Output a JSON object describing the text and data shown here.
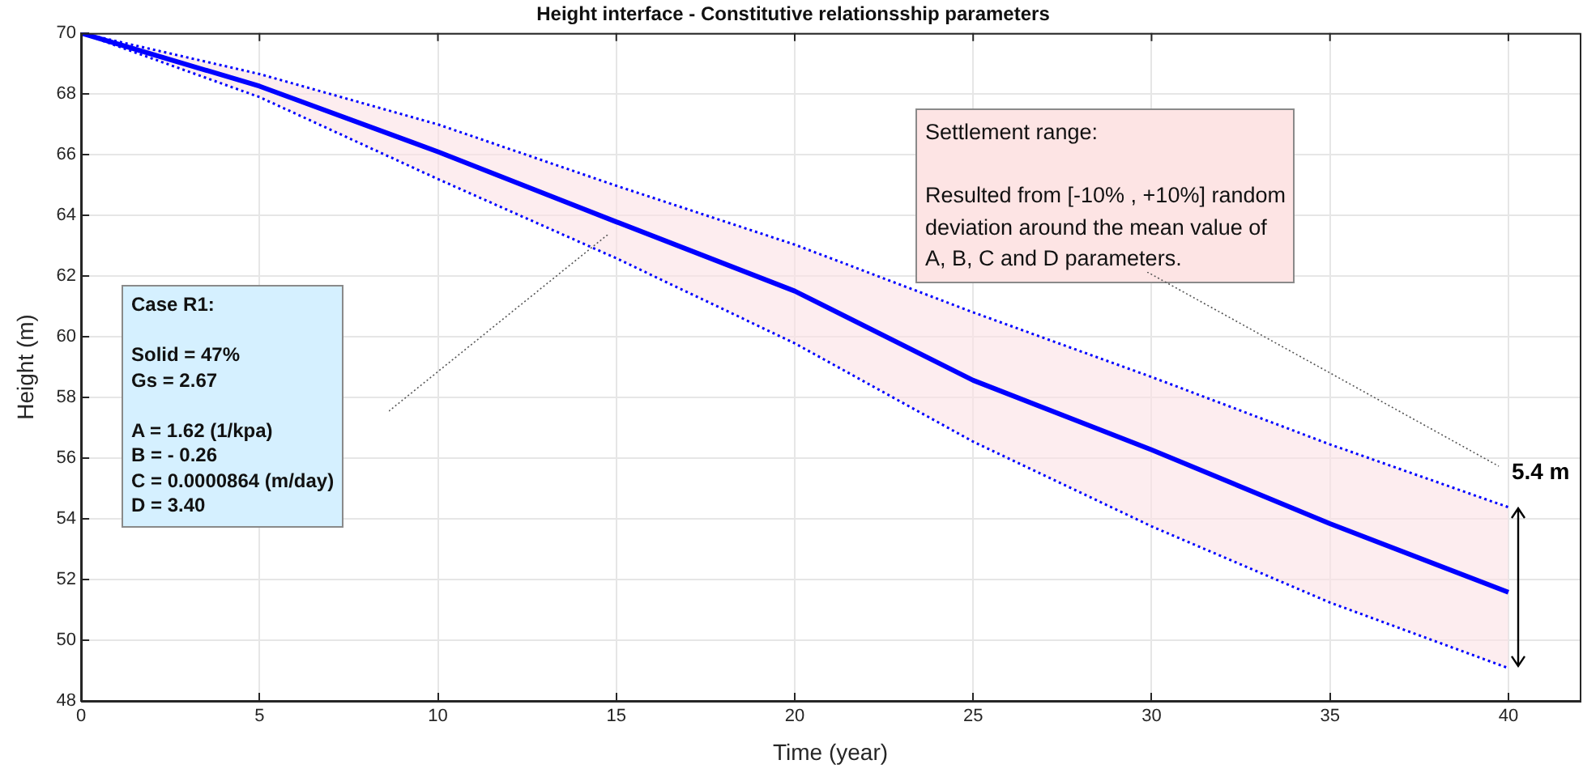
{
  "chart_data": {
    "type": "line",
    "title": "Height interface - Constitutive relationsship parameters",
    "xlabel": "Time (year)",
    "ylabel": "Height (m)",
    "x": [
      0,
      5,
      10,
      15,
      20,
      25,
      30,
      35,
      40
    ],
    "series": [
      {
        "color": "#0000ff",
        "line_style": "solid",
        "values": [
          70,
          68.25,
          66.09,
          63.78,
          61.5,
          58.56,
          56.27,
          53.84,
          51.58
        ],
        "lower": [
          70,
          67.89,
          65.19,
          62.58,
          59.78,
          56.54,
          53.75,
          51.24,
          49.08
        ],
        "upper": [
          70,
          68.65,
          66.99,
          64.97,
          63.03,
          60.8,
          58.67,
          56.45,
          54.38
        ]
      },
      {
        "color": "#0000ff",
        "line_style": "dotted",
        "values": [
          70,
          68.65,
          66.99,
          64.97,
          63.03,
          60.8,
          58.67,
          56.45,
          54.38
        ]
      },
      {
        "color": "#0000ff",
        "line_style": "dotted",
        "values": [
          70,
          67.89,
          65.19,
          62.58,
          59.78,
          56.54,
          53.75,
          51.24,
          49.08
        ]
      }
    ],
    "xlim": [
      0,
      42
    ],
    "xticks": [
      0,
      5,
      10,
      15,
      20,
      25,
      30,
      35,
      40
    ],
    "ylim": [
      48,
      70
    ],
    "yticks": [
      48,
      50,
      52,
      54,
      56,
      58,
      60,
      62,
      64,
      66,
      68,
      70
    ],
    "grid": true,
    "marker": "none",
    "annotations": [
      "Case R1:\n\nSolid = 47%\nGs = 2.67\n\nA = 1.62 (1/kpa)\nB = - 0.26\nC = 0.0000864 (m/day)\nD = 3.40",
      "Settlement range:\n\nResulted from [-10% , +10%] random\ndeviation around the mean value of\nA, B, C and D parameters.",
      {
        "text": "5.4 m",
        "x": 40,
        "y": 54.38
      }
    ]
  }
}
